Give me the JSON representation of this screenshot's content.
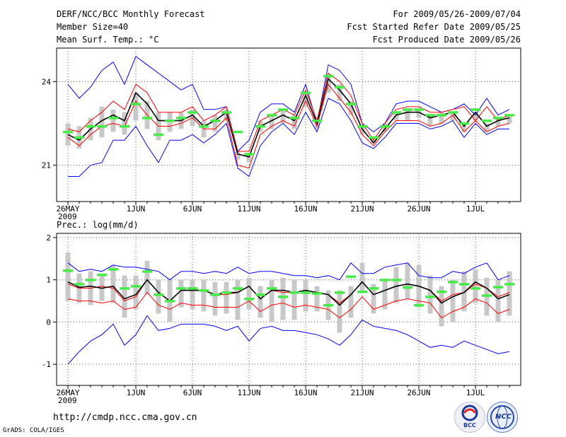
{
  "header": {
    "title": "DERF/NCC/BCC Monthly Forecast",
    "member_size": "Member Size=40",
    "variable": "Mean Surf. Temp.: °C",
    "period": "For 2009/05/26-2009/07/04",
    "start_date": "Fcst Started Refer Date 2009/05/25",
    "produced_date": "Fcst Produced Date 2009/05/26"
  },
  "footer": {
    "url": "http://cmdp.ncc.cma.gov.cn",
    "grads": "GrADS: COLA/IGES",
    "logo_bcc": "BCC",
    "logo_ncc": "NCC"
  },
  "colors": {
    "ensemble_mean": "#000000",
    "bounds_outer": "#0000ff",
    "bounds_inner": "#ff0000",
    "members_box": "#c8c8c8",
    "median": "#44ee44"
  },
  "chart_data": [
    {
      "type": "line",
      "title": "Mean Surf. Temp.: °C",
      "x": [
        1,
        2,
        3,
        4,
        5,
        6,
        7,
        8,
        9,
        10,
        11,
        12,
        13,
        14,
        15,
        16,
        17,
        18,
        19,
        20,
        21,
        22,
        23,
        24,
        25,
        26,
        27,
        28,
        29,
        30,
        31,
        32,
        33,
        34,
        35,
        36,
        37,
        38,
        39,
        40
      ],
      "x_ticks": [
        {
          "x": 1,
          "label": "26MAY"
        },
        {
          "x": 7,
          "label": "1JUN"
        },
        {
          "x": 12,
          "label": "6JUN"
        },
        {
          "x": 17,
          "label": "11JUN"
        },
        {
          "x": 22,
          "label": "16JUN"
        },
        {
          "x": 27,
          "label": "21JUN"
        },
        {
          "x": 32,
          "label": "26JUN"
        },
        {
          "x": 37,
          "label": "1JUL"
        }
      ],
      "x_sublabel": "2009",
      "ylim": [
        19.7,
        25.2
      ],
      "y_ticks": [
        21,
        24
      ],
      "series": [
        {
          "name": "max",
          "color": "#0000ff",
          "values": [
            23.9,
            23.4,
            23.8,
            24.4,
            24.7,
            23.9,
            24.9,
            24.6,
            24.3,
            24.0,
            23.7,
            23.9,
            23.0,
            23.0,
            23.1,
            21.5,
            21.9,
            22.9,
            23.2,
            23.2,
            22.9,
            23.9,
            22.5,
            24.6,
            24.4,
            23.9,
            22.5,
            22.2,
            22.5,
            23.2,
            23.3,
            23.3,
            23.1,
            22.9,
            23.0,
            23.2,
            22.8,
            23.4,
            22.8,
            23.0
          ]
        },
        {
          "name": "upper",
          "color": "#ff0000",
          "values": [
            22.3,
            22.2,
            22.6,
            22.9,
            23.3,
            23.0,
            23.9,
            23.6,
            22.9,
            22.9,
            22.9,
            23.1,
            22.6,
            22.8,
            23.1,
            21.5,
            21.5,
            22.6,
            22.8,
            23.0,
            22.8,
            23.7,
            22.6,
            24.3,
            24.0,
            23.5,
            22.5,
            21.9,
            22.5,
            23.0,
            23.1,
            23.1,
            22.9,
            22.9,
            23.0,
            23.1,
            22.6,
            23.1,
            22.6,
            22.8
          ]
        },
        {
          "name": "mean",
          "color": "#000000",
          "values": [
            22.1,
            21.9,
            22.3,
            22.6,
            22.8,
            22.6,
            23.6,
            23.2,
            22.6,
            22.6,
            22.6,
            22.8,
            22.4,
            22.6,
            22.9,
            21.4,
            21.3,
            22.4,
            22.6,
            22.8,
            22.6,
            23.5,
            22.5,
            24.1,
            23.7,
            23.2,
            22.3,
            21.8,
            22.3,
            22.8,
            22.9,
            22.9,
            22.7,
            22.8,
            22.9,
            22.4,
            22.9,
            22.4,
            22.6,
            22.7
          ]
        },
        {
          "name": "lower",
          "color": "#ff0000",
          "values": [
            22.0,
            21.7,
            22.1,
            22.4,
            22.5,
            22.4,
            23.3,
            22.8,
            22.4,
            22.4,
            22.5,
            22.7,
            22.3,
            22.3,
            22.7,
            21.0,
            20.9,
            22.1,
            22.4,
            22.6,
            22.4,
            23.3,
            22.4,
            23.9,
            23.4,
            22.9,
            22.1,
            21.7,
            22.2,
            22.6,
            22.6,
            22.6,
            22.4,
            22.5,
            22.8,
            22.2,
            22.6,
            22.2,
            22.4,
            22.5
          ]
        },
        {
          "name": "min",
          "color": "#0000ff",
          "values": [
            20.6,
            20.6,
            21.0,
            21.1,
            21.9,
            21.9,
            22.4,
            21.7,
            21.1,
            21.9,
            21.9,
            22.1,
            21.8,
            22.1,
            22.5,
            20.9,
            20.6,
            21.7,
            22.2,
            22.5,
            22.1,
            22.9,
            22.2,
            23.4,
            23.2,
            22.6,
            21.8,
            21.6,
            22.0,
            22.5,
            22.5,
            22.5,
            22.3,
            22.4,
            22.6,
            22.0,
            22.5,
            22.1,
            22.3,
            22.3
          ]
        }
      ],
      "members_box": {
        "lo": [
          21.7,
          21.6,
          21.9,
          22.0,
          22.2,
          22.1,
          22.6,
          22.3,
          21.9,
          22.2,
          22.3,
          22.4,
          22.0,
          22.2,
          22.6,
          21.2,
          21.1,
          22.2,
          22.3,
          22.5,
          22.3,
          23.1,
          22.3,
          23.6,
          23.3,
          22.8,
          22.1,
          21.8,
          22.2,
          22.6,
          22.6,
          22.7,
          22.4,
          22.5,
          22.6,
          22.2,
          22.6,
          22.2,
          22.4,
          22.5
        ],
        "hi": [
          22.5,
          22.4,
          22.7,
          23.1,
          23.0,
          22.9,
          23.6,
          23.3,
          22.9,
          22.9,
          22.9,
          23.0,
          22.6,
          22.8,
          23.0,
          21.5,
          21.4,
          22.6,
          22.8,
          23.0,
          22.8,
          23.6,
          22.6,
          24.2,
          23.9,
          23.3,
          22.4,
          22.0,
          22.5,
          22.9,
          23.0,
          23.0,
          22.8,
          22.9,
          22.9,
          22.5,
          22.9,
          22.5,
          22.7,
          22.8
        ]
      },
      "median": [
        22.2,
        22.0,
        22.4,
        22.4,
        22.7,
        22.4,
        23.2,
        22.7,
        22.1,
        22.6,
        22.7,
        22.9,
        22.4,
        22.6,
        22.9,
        22.2,
        21.4,
        22.4,
        22.8,
        23.0,
        22.7,
        23.6,
        22.6,
        24.2,
        23.8,
        23.2,
        22.4,
        22.0,
        22.4,
        22.9,
        23.0,
        23.0,
        22.8,
        22.8,
        22.9,
        22.5,
        23.0,
        22.6,
        22.7,
        22.8
      ]
    },
    {
      "type": "line",
      "title": "Prec.: log(mm/d)",
      "x": [
        1,
        2,
        3,
        4,
        5,
        6,
        7,
        8,
        9,
        10,
        11,
        12,
        13,
        14,
        15,
        16,
        17,
        18,
        19,
        20,
        21,
        22,
        23,
        24,
        25,
        26,
        27,
        28,
        29,
        30,
        31,
        32,
        33,
        34,
        35,
        36,
        37,
        38,
        39,
        40
      ],
      "x_ticks": [
        {
          "x": 1,
          "label": "26MAY"
        },
        {
          "x": 7,
          "label": "1JUN"
        },
        {
          "x": 12,
          "label": "6JUN"
        },
        {
          "x": 17,
          "label": "11JUN"
        },
        {
          "x": 22,
          "label": "16JUN"
        },
        {
          "x": 27,
          "label": "21JUN"
        },
        {
          "x": 32,
          "label": "26JUN"
        },
        {
          "x": 37,
          "label": "1JUL"
        }
      ],
      "x_sublabel": "2009",
      "ylim": [
        -1.5,
        2.1
      ],
      "y_ticks": [
        -1,
        0,
        1,
        2
      ],
      "series": [
        {
          "name": "max",
          "color": "#0000ff",
          "values": [
            1.4,
            1.2,
            1.25,
            1.2,
            1.35,
            1.3,
            1.3,
            1.25,
            1.2,
            1.0,
            1.2,
            1.2,
            1.15,
            1.2,
            1.15,
            1.3,
            1.15,
            1.2,
            1.2,
            1.15,
            1.1,
            1.1,
            1.05,
            1.1,
            1.0,
            1.4,
            1.15,
            1.15,
            1.3,
            1.35,
            1.4,
            1.1,
            1.05,
            1.05,
            1.2,
            1.15,
            1.3,
            1.4,
            1.0,
            1.1
          ]
        },
        {
          "name": "upper",
          "color": "#ff0000",
          "values": [
            0.9,
            0.8,
            0.8,
            0.85,
            0.8,
            0.5,
            0.6,
            1.0,
            0.7,
            0.5,
            0.75,
            0.75,
            0.75,
            0.65,
            0.65,
            0.7,
            0.85,
            0.55,
            0.75,
            0.7,
            0.7,
            0.75,
            0.7,
            0.65,
            0.45,
            0.65,
            0.95,
            0.65,
            0.75,
            0.85,
            0.9,
            0.85,
            0.75,
            0.5,
            0.65,
            0.7,
            0.9,
            0.8,
            0.6,
            0.7
          ]
        },
        {
          "name": "mean",
          "color": "#000000",
          "values": [
            0.95,
            0.82,
            0.85,
            0.8,
            0.85,
            0.55,
            0.65,
            1.0,
            0.7,
            0.5,
            0.75,
            0.75,
            0.75,
            0.65,
            0.7,
            0.7,
            0.85,
            0.55,
            0.75,
            0.75,
            0.7,
            0.75,
            0.7,
            0.65,
            0.4,
            0.65,
            0.95,
            0.65,
            0.75,
            0.85,
            0.9,
            0.85,
            0.75,
            0.45,
            0.6,
            0.7,
            0.95,
            0.8,
            0.55,
            0.65
          ]
        },
        {
          "name": "lower",
          "color": "#ff0000",
          "values": [
            0.55,
            0.5,
            0.5,
            0.45,
            0.5,
            0.3,
            0.35,
            0.7,
            0.4,
            0.3,
            0.45,
            0.4,
            0.4,
            0.35,
            0.35,
            0.35,
            0.5,
            0.25,
            0.4,
            0.45,
            0.35,
            0.4,
            0.35,
            0.3,
            0.1,
            0.3,
            0.6,
            0.3,
            0.4,
            0.5,
            0.55,
            0.5,
            0.45,
            0.1,
            0.25,
            0.35,
            0.55,
            0.45,
            0.2,
            0.3
          ]
        },
        {
          "name": "min",
          "color": "#0000ff",
          "values": [
            -1.0,
            -0.7,
            -0.45,
            -0.3,
            -0.05,
            -0.55,
            -0.3,
            0.15,
            -0.2,
            -0.15,
            -0.05,
            -0.05,
            -0.05,
            -0.1,
            -0.2,
            -0.1,
            -0.45,
            -0.15,
            -0.1,
            -0.2,
            -0.2,
            -0.25,
            -0.3,
            -0.4,
            -0.55,
            -0.3,
            0.05,
            -0.1,
            -0.15,
            -0.2,
            -0.3,
            -0.45,
            -0.6,
            -0.55,
            -0.6,
            -0.45,
            -0.55,
            -0.65,
            -0.75,
            -0.7
          ]
        }
      ],
      "members_box": {
        "lo": [
          0.5,
          0.45,
          0.4,
          0.5,
          0.45,
          0.1,
          0.3,
          0.65,
          0.2,
          0.0,
          0.35,
          0.3,
          0.25,
          0.15,
          0.2,
          0.05,
          0.3,
          0.1,
          0.0,
          0.05,
          0.05,
          0.25,
          0.25,
          0.05,
          -0.25,
          0.1,
          0.75,
          0.2,
          0.3,
          0.45,
          0.55,
          0.35,
          0.2,
          -0.1,
          0.0,
          0.25,
          0.45,
          0.15,
          0.0,
          0.15
        ],
        "hi": [
          1.65,
          1.15,
          1.2,
          1.15,
          1.35,
          1.1,
          1.1,
          1.45,
          1.0,
          1.0,
          1.0,
          1.0,
          1.0,
          0.95,
          0.95,
          1.0,
          1.05,
          0.85,
          1.0,
          1.05,
          1.0,
          1.0,
          0.85,
          0.75,
          0.75,
          0.85,
          1.4,
          0.9,
          1.0,
          1.3,
          1.4,
          1.35,
          1.1,
          0.85,
          1.0,
          1.2,
          1.25,
          1.05,
          1.0,
          1.2
        ]
      },
      "median": [
        1.22,
        0.9,
        1.0,
        1.12,
        1.25,
        0.8,
        0.85,
        1.2,
        0.65,
        0.5,
        0.8,
        0.8,
        0.75,
        0.65,
        0.7,
        0.8,
        0.55,
        0.65,
        0.8,
        0.6,
        0.7,
        0.7,
        0.68,
        0.4,
        0.7,
        1.08,
        0.72,
        0.8,
        1.0,
        1.0,
        0.82,
        0.4,
        0.6,
        0.72,
        0.95,
        0.9,
        0.8,
        0.63,
        0.83,
        0.9
      ]
    }
  ]
}
